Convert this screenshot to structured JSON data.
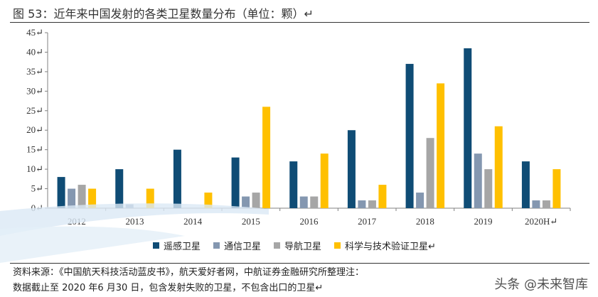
{
  "figure": {
    "title": "图 53：近年来中国发射的各类卫星数量分布（单位：颗）↵"
  },
  "chart_data": {
    "type": "bar",
    "title": "图 53：近年来中国发射的各类卫星数量分布（单位：颗）",
    "categories": [
      "2012",
      "2013",
      "2014",
      "2015",
      "2016",
      "2017",
      "2018",
      "2019",
      "2020H↵"
    ],
    "series": [
      {
        "name": "遥感卫星",
        "color": "#0f4c75",
        "values": [
          8,
          10,
          15,
          13,
          12,
          20,
          37,
          41,
          12
        ]
      },
      {
        "name": "通信卫星",
        "color": "#8497b0",
        "values": [
          5,
          1,
          0,
          3,
          3,
          2,
          4,
          14,
          2
        ]
      },
      {
        "name": "导航卫星",
        "color": "#a6a6a6",
        "values": [
          6,
          0,
          0,
          4,
          3,
          2,
          18,
          10,
          2
        ]
      },
      {
        "name": "科学与技术验证卫星↵",
        "color": "#ffc000",
        "values": [
          5,
          5,
          4,
          26,
          14,
          6,
          32,
          21,
          10
        ]
      }
    ],
    "yticks": [
      "0↵",
      "5↵",
      "10↵",
      "15↵",
      "20↵",
      "25↵",
      "30↵",
      "35↵",
      "40↵",
      "45↵"
    ],
    "ylim": [
      0,
      45
    ],
    "grid": false,
    "legend_position": "bottom"
  },
  "footer": {
    "source_line1": "资料来源：《中国航天科技活动蓝皮书》，航天爱好者网，中航证券金融研究所整理注：",
    "source_line2": "数据截止至 2020 年6 月30 日，包含发射失败的卫星，不包含出口的卫星↵"
  },
  "watermark": {
    "text": "头条 @未来智库"
  }
}
